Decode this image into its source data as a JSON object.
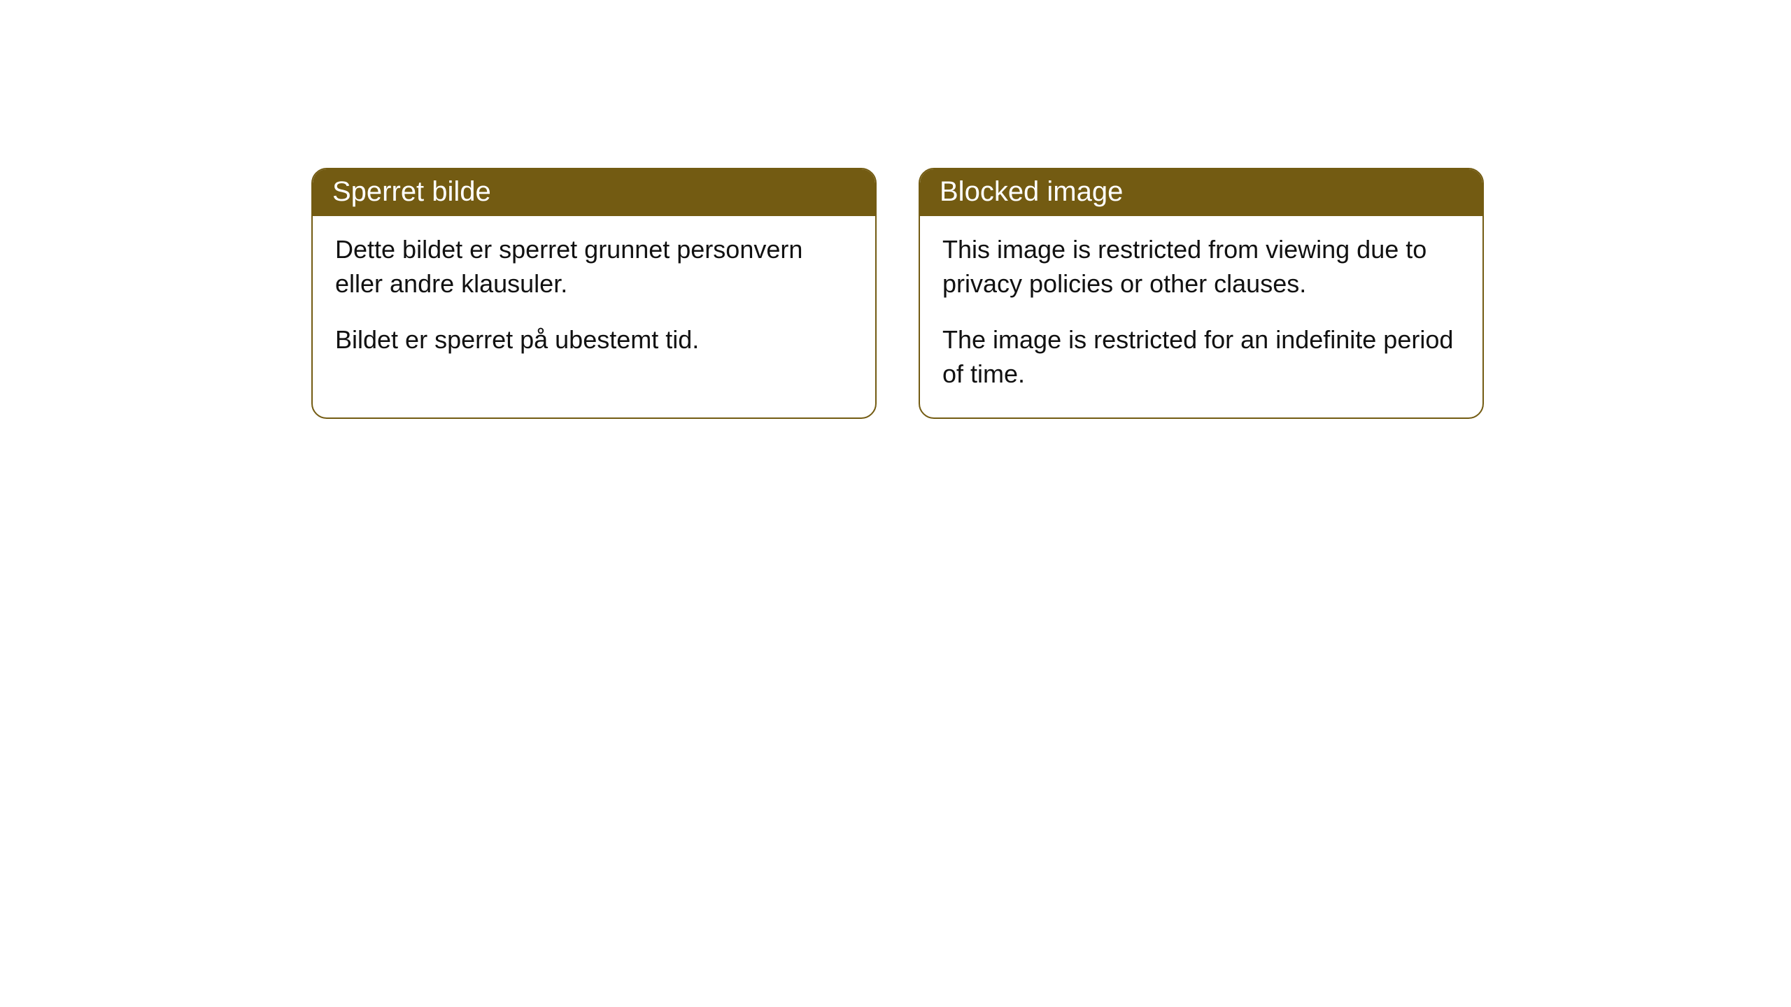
{
  "cards": [
    {
      "title": "Sperret bilde",
      "paragraph1": "Dette bildet er sperret grunnet personvern eller andre klausuler.",
      "paragraph2": "Bildet er sperret på ubestemt tid."
    },
    {
      "title": "Blocked image",
      "paragraph1": "This image is restricted from viewing due to privacy policies or other clauses.",
      "paragraph2": "The image is restricted for an indefinite period of time."
    }
  ],
  "styling": {
    "header_background": "#735b12",
    "header_text_color": "#ffffff",
    "border_color": "#735b12",
    "border_radius": "22px",
    "body_text_color": "#111111",
    "background_color": "#ffffff",
    "title_fontsize": 40,
    "body_fontsize": 36
  }
}
